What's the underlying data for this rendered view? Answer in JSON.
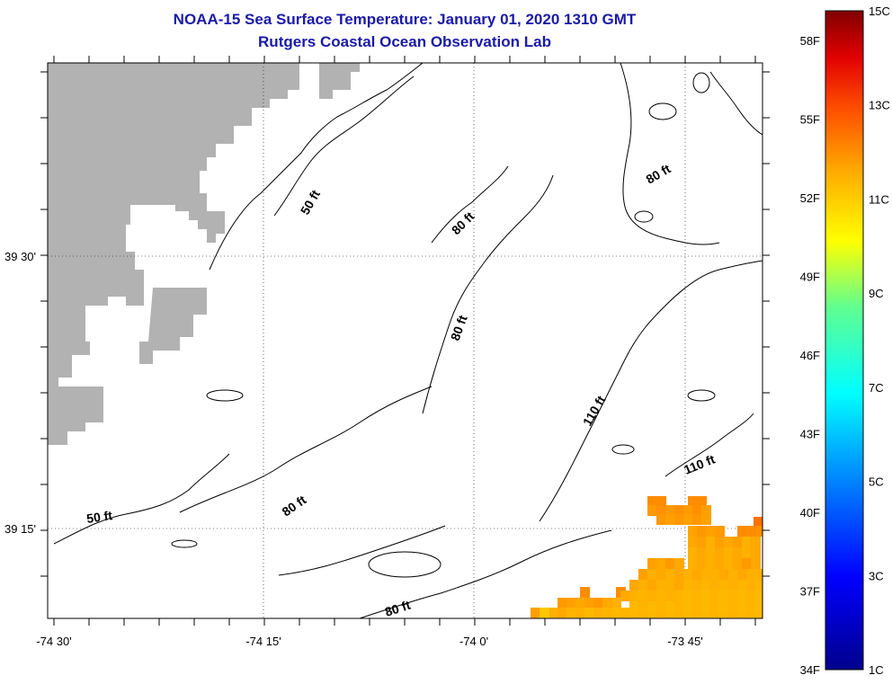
{
  "header": {
    "title": "NOAA-15 Sea Surface Temperature:  January 01, 2020 1310 GMT",
    "subtitle": "Rutgers Coastal Ocean Observation Lab"
  },
  "axes": {
    "lon_labels": [
      "-74 30'",
      "-74 15'",
      "-74 0'",
      "-73 45'"
    ],
    "lat_labels": [
      "39 30'",
      "39 15'"
    ]
  },
  "contours": [
    {
      "label": "50 ft",
      "depth": 50
    },
    {
      "label": "50 ft",
      "depth": 50
    },
    {
      "label": "80 ft",
      "depth": 80
    },
    {
      "label": "80 ft",
      "depth": 80
    },
    {
      "label": "80 ft",
      "depth": 80
    },
    {
      "label": "80 ft",
      "depth": 80
    },
    {
      "label": "80 ft",
      "depth": 80
    },
    {
      "label": "110 ft",
      "depth": 110
    },
    {
      "label": "110 ft",
      "depth": 110
    }
  ],
  "legend": {
    "fahrenheit": [
      "58F",
      "55F",
      "52F",
      "49F",
      "46F",
      "43F",
      "40F",
      "37F",
      "34F"
    ],
    "celsius": [
      "15C",
      "13C",
      "11C",
      "9C",
      "7C",
      "5C",
      "3C",
      "1C"
    ],
    "range_c": [
      1,
      15
    ]
  },
  "colors": {
    "land": "#b2b2b2",
    "title": "#1a1aa6",
    "sst_warm": "#ffb400",
    "sst_orange": "#ff8c00"
  }
}
